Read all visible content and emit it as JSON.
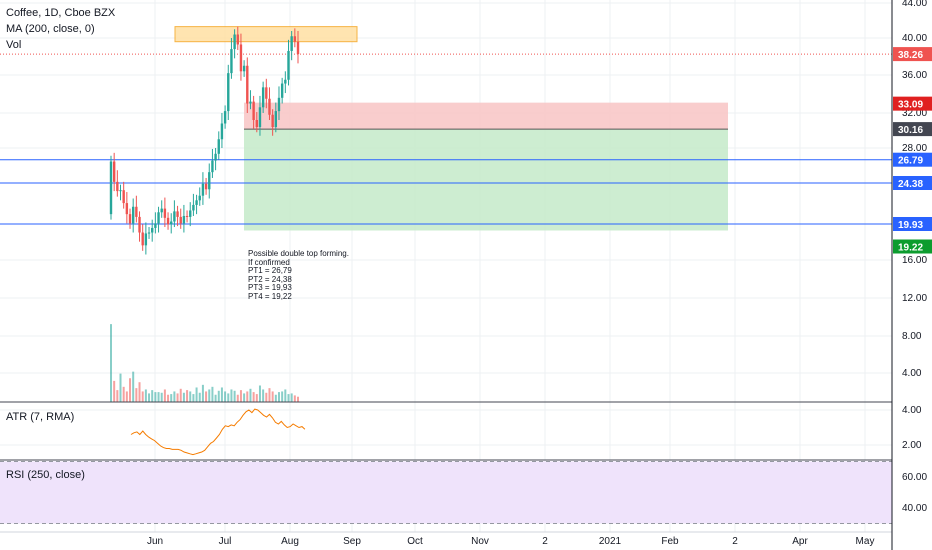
{
  "header": {
    "symbol": "Coffee, 1D, Cboe BZX",
    "ma": "MA (200, close, 0)",
    "vol": "Vol",
    "atr": "ATR (7, RMA)",
    "rsi": "RSI (250, close)"
  },
  "note": {
    "lines": [
      "Possible double top forming.",
      "If confirmed",
      "PT1 = 26,79",
      "PT2 = 24,38",
      "PT3 = 19,93",
      "PT4 = 19,22"
    ]
  },
  "colors": {
    "up": "#26a69a",
    "down": "#ef5350",
    "blue_line": "#2962ff",
    "stop_zone": "#f8c4c4",
    "target_zone": "#c8ebcc",
    "resistance_box": "#ffe0a3",
    "price_line": "#ef5350",
    "atr": "#f57c00",
    "rsi_band": "#efe3fb"
  },
  "chart_data": [
    {
      "type": "candlestick",
      "title": "Coffee, 1D, Cboe BZX",
      "x_tick_labels": [
        "Jun",
        "Jul",
        "Aug",
        "Sep",
        "Oct",
        "Nov",
        "2",
        "2021",
        "Feb",
        "2",
        "Apr",
        "May"
      ],
      "y_tick_labels": [
        "44.00",
        "40.00",
        "36.00",
        "32.00",
        "28.00",
        "16.00",
        "12.00",
        "8.00",
        "4.00"
      ],
      "ylim": [
        0,
        45
      ],
      "grid": true,
      "candles_start": "2020-05-18",
      "candles_open": [
        21.0,
        26.6,
        24.5,
        23.5,
        23.6,
        22.2,
        21.0,
        20.0,
        21.8,
        20.7,
        19.0,
        17.6,
        18.9,
        19.0,
        19.5,
        20.0,
        21.2,
        21.6,
        20.6,
        19.9,
        20.2,
        21.3,
        20.7,
        20.0,
        20.8,
        20.7,
        21.4,
        22.0,
        22.5,
        23.0,
        24.3,
        23.7,
        25.5,
        26.7,
        27.4,
        29.0,
        30.8,
        32.2,
        36.2,
        38.8,
        40.4,
        39.3,
        36.4,
        37.0,
        33.0,
        33.2,
        31.2,
        30.4,
        32.6,
        34.7,
        33.5,
        31.8,
        30.4,
        32.2,
        33.6,
        35.1,
        35.5,
        38.6,
        40.2,
        39.6
      ],
      "candles_close": [
        26.6,
        24.5,
        23.5,
        23.6,
        22.2,
        21.0,
        20.0,
        21.8,
        20.7,
        19.0,
        17.6,
        18.9,
        19.0,
        19.5,
        20.0,
        21.2,
        21.6,
        20.6,
        19.9,
        20.2,
        21.3,
        20.7,
        20.0,
        20.8,
        20.7,
        21.4,
        22.0,
        22.5,
        23.0,
        24.3,
        23.7,
        25.5,
        26.7,
        27.4,
        29.0,
        30.8,
        32.2,
        36.2,
        38.8,
        40.4,
        39.3,
        36.4,
        37.0,
        33.0,
        33.2,
        31.2,
        30.4,
        32.6,
        34.7,
        33.5,
        31.8,
        30.4,
        32.2,
        33.6,
        35.1,
        35.5,
        38.6,
        40.2,
        39.6,
        38.26
      ],
      "moving_average": "MA (200, close, 0)",
      "horizontal_lines": [
        {
          "label": "26.79",
          "value": 26.79
        },
        {
          "label": "24.38",
          "value": 24.38
        },
        {
          "label": "19.93",
          "value": 19.93
        }
      ],
      "price_labels": [
        {
          "label": "38.26",
          "value": 38.26,
          "kind": "last_price"
        },
        {
          "label": "33.09",
          "value": 33.09,
          "kind": "stop"
        },
        {
          "label": "30.16",
          "value": 30.16,
          "kind": "entry"
        },
        {
          "label": "19.22",
          "value": 19.22,
          "kind": "target"
        }
      ],
      "zones": {
        "stop": {
          "from": 30.16,
          "to": 33.09
        },
        "target": {
          "from": 19.22,
          "to": 30.16
        },
        "resistance": {
          "from": 39.6,
          "to": 41.3
        }
      },
      "volume": [
        11.8,
        3.2,
        1.8,
        4.3,
        2.3,
        1.6,
        3.6,
        4.6,
        2.1,
        3.0,
        1.6,
        1.9,
        1.3,
        1.8,
        1.5,
        1.5,
        1.4,
        1.9,
        1.1,
        1.2,
        1.6,
        1.3,
        2.0,
        1.4,
        1.8,
        1.6,
        1.2,
        2.2,
        1.4,
        2.6,
        1.6,
        1.9,
        2.3,
        1.1,
        1.7,
        2.2,
        1.6,
        1.3,
        1.9,
        1.7,
        1.1,
        1.8,
        1.3,
        1.6,
        2.0,
        1.5,
        1.2,
        2.5,
        1.9,
        1.4,
        2.1,
        1.6,
        1.1,
        1.5,
        1.6,
        1.9,
        1.2,
        1.3,
        1.0,
        0.8
      ]
    },
    {
      "type": "line",
      "title": "ATR (7, RMA)",
      "y_tick_labels": [
        "4.00",
        "2.00"
      ],
      "ylim": [
        1,
        4.8
      ],
      "values": [
        2.6,
        2.7,
        2.75,
        2.6,
        2.8,
        2.6,
        2.45,
        2.35,
        2.25,
        2.1,
        1.95,
        1.85,
        1.8,
        1.8,
        1.75,
        1.75,
        1.75,
        1.7,
        1.6,
        1.55,
        1.5,
        1.45,
        1.5,
        1.55,
        1.6,
        1.7,
        1.9,
        2.1,
        2.2,
        2.4,
        2.6,
        2.9,
        3.1,
        3.05,
        3.15,
        3.1,
        3.3,
        3.45,
        3.7,
        3.9,
        4.0,
        3.85,
        4.05,
        4.0,
        3.85,
        3.7,
        3.6,
        3.75,
        3.55,
        3.3,
        3.2,
        3.35,
        3.15,
        3.0,
        3.05,
        3.2,
        3.1,
        3.0,
        3.05,
        2.9
      ]
    },
    {
      "type": "line",
      "title": "RSI (250, close)",
      "y_tick_labels": [
        "60.00",
        "40.00"
      ],
      "ylim": [
        28,
        73
      ],
      "band": [
        30,
        70
      ]
    }
  ]
}
